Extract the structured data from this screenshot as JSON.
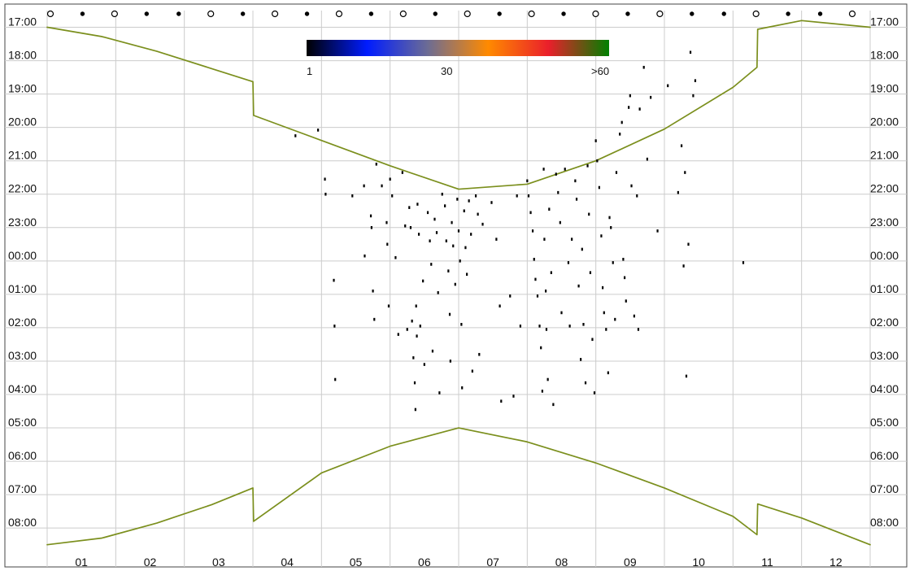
{
  "chart_data": {
    "type": "scatter",
    "title": "",
    "xlabel": "",
    "ylabel": "",
    "x_ticks": [
      "01",
      "02",
      "03",
      "04",
      "05",
      "06",
      "07",
      "08",
      "09",
      "10",
      "11",
      "12"
    ],
    "y_ticks": [
      "17:00",
      "18:00",
      "19:00",
      "20:00",
      "21:00",
      "22:00",
      "23:00",
      "00:00",
      "01:00",
      "02:00",
      "03:00",
      "04:00",
      "05:00",
      "06:00",
      "07:00",
      "08:00"
    ],
    "grid": true,
    "colorbar": {
      "labels": [
        "1",
        "30",
        ">60"
      ],
      "colors": [
        "#000000",
        "#001cff",
        "#6c6c94",
        "#ff8a00",
        "#ea1f2b",
        "#008000"
      ]
    },
    "moon_phase_marks": [
      "open",
      "filled",
      "open",
      "filled",
      "filled",
      "open",
      "filled",
      "open",
      "filled",
      "open",
      "filled",
      "open",
      "filled",
      "open",
      "filled",
      "open",
      "filled",
      "open",
      "filled",
      "open",
      "filled",
      "filled",
      "open",
      "filled",
      "filled",
      "open"
    ],
    "series": [
      {
        "kind": "line",
        "color": "#7b8f1d",
        "points": [
          [
            0.0,
            17.0
          ],
          [
            0.8,
            17.28
          ],
          [
            1.6,
            17.72
          ],
          [
            2.4,
            18.24
          ],
          [
            3.0,
            18.63
          ],
          [
            3.01,
            19.64
          ],
          [
            4.0,
            20.39
          ],
          [
            5.0,
            21.15
          ],
          [
            6.0,
            21.85
          ],
          [
            7.0,
            21.7
          ],
          [
            8.0,
            21.0
          ],
          [
            9.0,
            20.05
          ],
          [
            10.0,
            18.8
          ],
          [
            10.35,
            18.2
          ],
          [
            10.36,
            17.06
          ],
          [
            11.0,
            16.8
          ],
          [
            12.0,
            17.0
          ]
        ]
      },
      {
        "kind": "line",
        "color": "#7b8f1d",
        "points": [
          [
            0.0,
            32.5
          ],
          [
            0.8,
            32.3
          ],
          [
            1.6,
            31.85
          ],
          [
            2.4,
            31.3
          ],
          [
            3.0,
            30.8
          ],
          [
            3.01,
            31.8
          ],
          [
            4.0,
            30.35
          ],
          [
            5.0,
            29.55
          ],
          [
            6.0,
            29.0
          ],
          [
            7.0,
            29.42
          ],
          [
            8.0,
            30.05
          ],
          [
            9.0,
            30.8
          ],
          [
            10.0,
            31.65
          ],
          [
            10.35,
            32.2
          ],
          [
            10.36,
            31.28
          ],
          [
            11.0,
            31.7
          ],
          [
            12.0,
            32.5
          ]
        ]
      },
      {
        "kind": "scatter",
        "color": "#000000",
        "points": [
          [
            3.62,
            20.25
          ],
          [
            3.95,
            20.08
          ],
          [
            4.05,
            21.55
          ],
          [
            4.06,
            22.0
          ],
          [
            4.18,
            24.58
          ],
          [
            4.19,
            25.95
          ],
          [
            4.2,
            27.55
          ],
          [
            4.45,
            22.05
          ],
          [
            4.62,
            21.75
          ],
          [
            4.63,
            23.85
          ],
          [
            4.72,
            22.65
          ],
          [
            4.73,
            23.0
          ],
          [
            4.75,
            24.9
          ],
          [
            4.77,
            25.75
          ],
          [
            4.8,
            21.1
          ],
          [
            4.88,
            21.75
          ],
          [
            4.95,
            22.85
          ],
          [
            4.96,
            23.5
          ],
          [
            4.98,
            25.35
          ],
          [
            5.0,
            21.55
          ],
          [
            5.03,
            22.05
          ],
          [
            5.08,
            23.9
          ],
          [
            5.12,
            26.2
          ],
          [
            5.18,
            21.35
          ],
          [
            5.22,
            22.95
          ],
          [
            5.25,
            26.05
          ],
          [
            5.28,
            22.4
          ],
          [
            5.3,
            23.0
          ],
          [
            5.32,
            25.8
          ],
          [
            5.34,
            26.9
          ],
          [
            5.36,
            27.65
          ],
          [
            5.37,
            28.45
          ],
          [
            5.38,
            25.35
          ],
          [
            5.39,
            26.25
          ],
          [
            5.4,
            22.3
          ],
          [
            5.42,
            23.2
          ],
          [
            5.44,
            25.95
          ],
          [
            5.48,
            24.6
          ],
          [
            5.5,
            27.1
          ],
          [
            5.55,
            22.55
          ],
          [
            5.58,
            23.4
          ],
          [
            5.6,
            24.1
          ],
          [
            5.62,
            26.7
          ],
          [
            5.65,
            22.75
          ],
          [
            5.68,
            23.15
          ],
          [
            5.7,
            24.95
          ],
          [
            5.72,
            27.95
          ],
          [
            5.76,
            22.0
          ],
          [
            5.8,
            22.35
          ],
          [
            5.82,
            23.4
          ],
          [
            5.85,
            24.3
          ],
          [
            5.87,
            25.6
          ],
          [
            5.88,
            27.0
          ],
          [
            5.9,
            22.85
          ],
          [
            5.92,
            23.55
          ],
          [
            5.95,
            24.7
          ],
          [
            5.98,
            22.15
          ],
          [
            6.0,
            23.1
          ],
          [
            6.02,
            24.0
          ],
          [
            6.04,
            25.9
          ],
          [
            6.05,
            27.8
          ],
          [
            6.08,
            22.5
          ],
          [
            6.1,
            23.6
          ],
          [
            6.12,
            24.4
          ],
          [
            6.15,
            22.2
          ],
          [
            6.18,
            23.2
          ],
          [
            6.2,
            27.3
          ],
          [
            6.25,
            22.05
          ],
          [
            6.28,
            22.6
          ],
          [
            6.3,
            26.8
          ],
          [
            6.35,
            22.9
          ],
          [
            6.48,
            22.25
          ],
          [
            6.55,
            23.35
          ],
          [
            6.6,
            25.35
          ],
          [
            6.62,
            28.2
          ],
          [
            6.75,
            25.05
          ],
          [
            6.8,
            28.05
          ],
          [
            6.85,
            22.05
          ],
          [
            6.9,
            25.95
          ],
          [
            7.0,
            21.6
          ],
          [
            7.02,
            22.05
          ],
          [
            7.05,
            22.55
          ],
          [
            7.08,
            23.1
          ],
          [
            7.1,
            23.95
          ],
          [
            7.12,
            24.55
          ],
          [
            7.15,
            25.05
          ],
          [
            7.18,
            25.95
          ],
          [
            7.2,
            26.6
          ],
          [
            7.22,
            27.9
          ],
          [
            7.24,
            21.25
          ],
          [
            7.25,
            23.35
          ],
          [
            7.27,
            24.9
          ],
          [
            7.28,
            26.05
          ],
          [
            7.3,
            27.55
          ],
          [
            7.32,
            22.45
          ],
          [
            7.35,
            24.35
          ],
          [
            7.38,
            28.3
          ],
          [
            7.42,
            21.4
          ],
          [
            7.45,
            21.95
          ],
          [
            7.48,
            22.85
          ],
          [
            7.5,
            25.55
          ],
          [
            7.55,
            21.25
          ],
          [
            7.6,
            24.05
          ],
          [
            7.62,
            25.95
          ],
          [
            7.65,
            23.35
          ],
          [
            7.7,
            21.6
          ],
          [
            7.72,
            22.15
          ],
          [
            7.75,
            24.75
          ],
          [
            7.78,
            26.95
          ],
          [
            7.8,
            23.65
          ],
          [
            7.82,
            25.9
          ],
          [
            7.85,
            27.65
          ],
          [
            7.88,
            21.15
          ],
          [
            7.9,
            22.6
          ],
          [
            7.92,
            24.35
          ],
          [
            7.95,
            26.35
          ],
          [
            7.98,
            27.95
          ],
          [
            8.0,
            20.4
          ],
          [
            8.02,
            21.0
          ],
          [
            8.05,
            21.8
          ],
          [
            8.08,
            23.25
          ],
          [
            8.1,
            24.8
          ],
          [
            8.12,
            25.55
          ],
          [
            8.15,
            26.05
          ],
          [
            8.18,
            27.35
          ],
          [
            8.2,
            22.7
          ],
          [
            8.22,
            23.0
          ],
          [
            8.25,
            24.05
          ],
          [
            8.28,
            25.75
          ],
          [
            8.3,
            21.35
          ],
          [
            8.35,
            20.2
          ],
          [
            8.38,
            19.85
          ],
          [
            8.4,
            23.95
          ],
          [
            8.42,
            24.5
          ],
          [
            8.44,
            25.2
          ],
          [
            8.48,
            19.4
          ],
          [
            8.5,
            19.05
          ],
          [
            8.52,
            21.75
          ],
          [
            8.56,
            25.65
          ],
          [
            8.6,
            22.05
          ],
          [
            8.62,
            26.05
          ],
          [
            8.64,
            19.45
          ],
          [
            8.7,
            18.2
          ],
          [
            8.75,
            20.95
          ],
          [
            8.8,
            19.1
          ],
          [
            8.9,
            23.1
          ],
          [
            9.05,
            18.75
          ],
          [
            9.2,
            21.95
          ],
          [
            9.25,
            20.55
          ],
          [
            9.28,
            24.15
          ],
          [
            9.3,
            21.35
          ],
          [
            9.32,
            27.45
          ],
          [
            9.35,
            23.5
          ],
          [
            9.38,
            17.75
          ],
          [
            9.42,
            19.05
          ],
          [
            9.45,
            18.6
          ],
          [
            10.15,
            24.05
          ]
        ]
      }
    ]
  }
}
